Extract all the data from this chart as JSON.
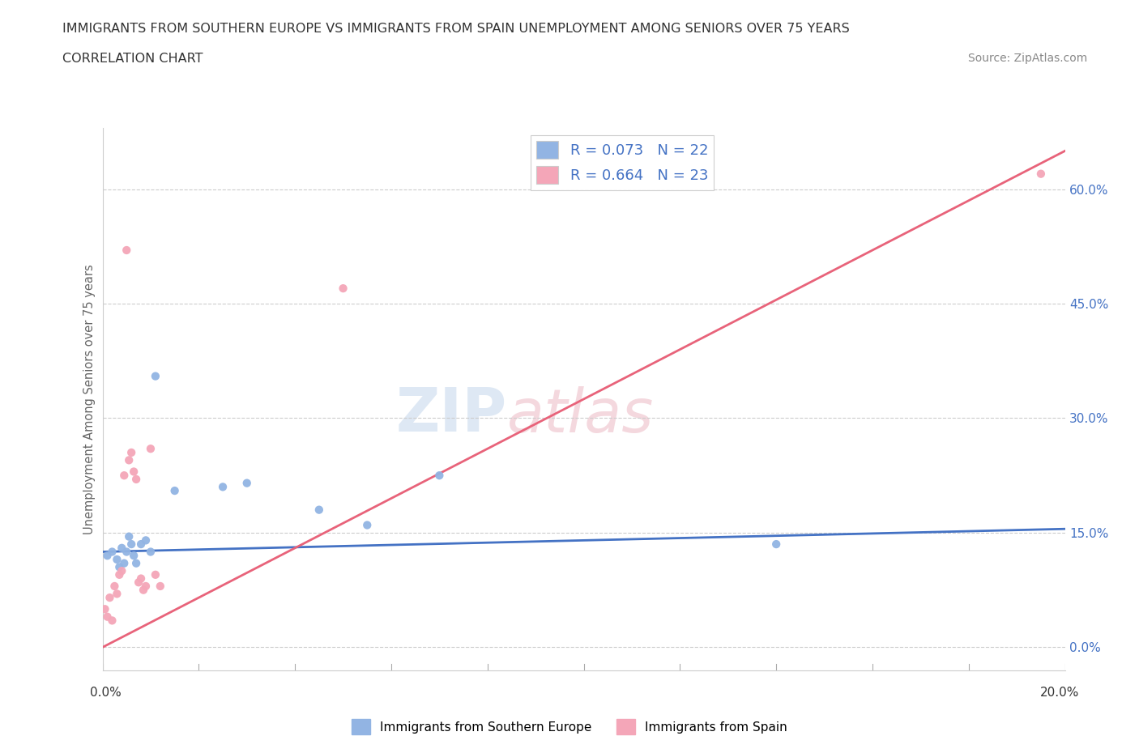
{
  "title_line1": "IMMIGRANTS FROM SOUTHERN EUROPE VS IMMIGRANTS FROM SPAIN UNEMPLOYMENT AMONG SENIORS OVER 75 YEARS",
  "title_line2": "CORRELATION CHART",
  "source": "Source: ZipAtlas.com",
  "ylabel": "Unemployment Among Seniors over 75 years",
  "ytick_vals": [
    0.0,
    15.0,
    30.0,
    45.0,
    60.0
  ],
  "xlim": [
    0.0,
    20.0
  ],
  "ylim": [
    -3.0,
    68.0
  ],
  "watermark_zip": "ZIP",
  "watermark_atlas": "atlas",
  "blue_color": "#92b4e3",
  "pink_color": "#f4a6b8",
  "blue_line_color": "#4472c4",
  "pink_line_color": "#e8637a",
  "dot_size": 55,
  "se_x": [
    0.1,
    0.2,
    0.3,
    0.35,
    0.4,
    0.45,
    0.5,
    0.55,
    0.6,
    0.65,
    0.7,
    0.8,
    0.9,
    1.0,
    1.1,
    1.5,
    2.5,
    3.0,
    4.5,
    5.5,
    7.0,
    14.0
  ],
  "se_y": [
    12.0,
    12.5,
    11.5,
    10.5,
    13.0,
    11.0,
    12.5,
    14.5,
    13.5,
    12.0,
    11.0,
    13.5,
    14.0,
    12.5,
    35.5,
    20.5,
    21.0,
    21.5,
    18.0,
    16.0,
    22.5,
    13.5
  ],
  "sp_x": [
    0.05,
    0.1,
    0.15,
    0.2,
    0.25,
    0.3,
    0.35,
    0.4,
    0.45,
    0.5,
    0.55,
    0.6,
    0.65,
    0.7,
    0.75,
    0.8,
    0.85,
    0.9,
    1.0,
    1.1,
    1.2,
    5.0,
    19.5
  ],
  "sp_y": [
    5.0,
    4.0,
    6.5,
    3.5,
    8.0,
    7.0,
    9.5,
    10.0,
    22.5,
    52.0,
    24.5,
    25.5,
    23.0,
    22.0,
    8.5,
    9.0,
    7.5,
    8.0,
    26.0,
    9.5,
    8.0,
    47.0,
    62.0
  ],
  "blue_line_x": [
    0.0,
    20.0
  ],
  "blue_line_y": [
    12.5,
    15.5
  ],
  "pink_line_x": [
    0.0,
    20.0
  ],
  "pink_line_y": [
    0.0,
    65.0
  ]
}
